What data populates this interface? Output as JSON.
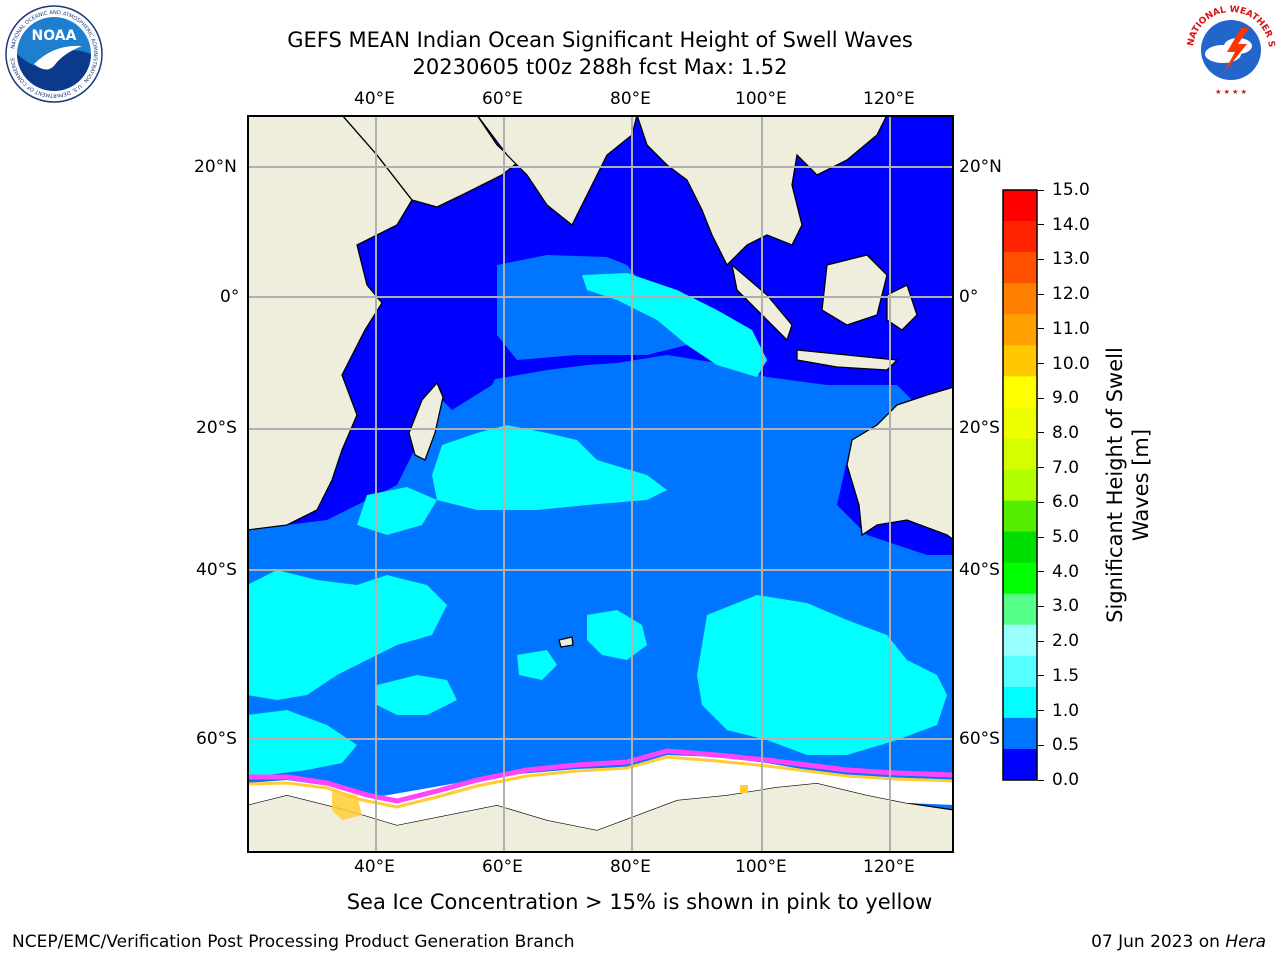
{
  "header": {
    "title_line1": "GEFS MEAN Indian Ocean Significant Height of Swell Waves",
    "title_line2": "20230605 t00z 288h fcst   Max: 1.52"
  },
  "logos": {
    "left": {
      "text": "NOAA",
      "ring_text": "NATIONAL OCEANIC AND ATMOSPHERIC ADMINISTRATION · U.S. DEPARTMENT OF COMMERCE"
    },
    "right": {
      "ring_text": "NATIONAL WEATHER SERVICE"
    }
  },
  "map": {
    "lon_labels": [
      "40°E",
      "60°E",
      "80°E",
      "100°E",
      "120°E"
    ],
    "lat_labels": [
      "20°N",
      "0°",
      "20°S",
      "40°S",
      "60°S"
    ],
    "colors": {
      "land": "#efeedd",
      "band_0_05": "#0000ff",
      "band_05_1": "#0075ff",
      "band_1_15": "#00ffff",
      "ice_white": "#ffffff",
      "ice_pink": "#ff44ff",
      "ice_yellow": "#ffcc33",
      "grid": "#b0b0b0"
    }
  },
  "colorbar": {
    "title_line1": "Significant Height of Swell",
    "title_line2": "Waves [m]",
    "labels": [
      "15.0",
      "14.0",
      "13.0",
      "12.0",
      "11.0",
      "10.0",
      "9.0",
      "8.0",
      "7.0",
      "6.0",
      "5.0",
      "4.0",
      "3.0",
      "2.0",
      "1.5",
      "1.0",
      "0.5",
      "0.0"
    ],
    "colors_top_to_bottom": [
      "#ff0000",
      "#ff2200",
      "#ff5000",
      "#ff7f00",
      "#ffa000",
      "#ffc800",
      "#ffff00",
      "#eeff00",
      "#d5ff00",
      "#b2ff00",
      "#55ee00",
      "#00dd00",
      "#00ff00",
      "#55ff88",
      "#99ffff",
      "#55ffff",
      "#00ffff",
      "#0075ff",
      "#0000ff"
    ]
  },
  "caption": "Sea Ice Concentration > 15% is shown in pink to yellow",
  "footer": {
    "left": "NCEP/EMC/Verification Post Processing Product Generation Branch",
    "right_date": "07 Jun 2023 on ",
    "right_host": "Hera"
  }
}
